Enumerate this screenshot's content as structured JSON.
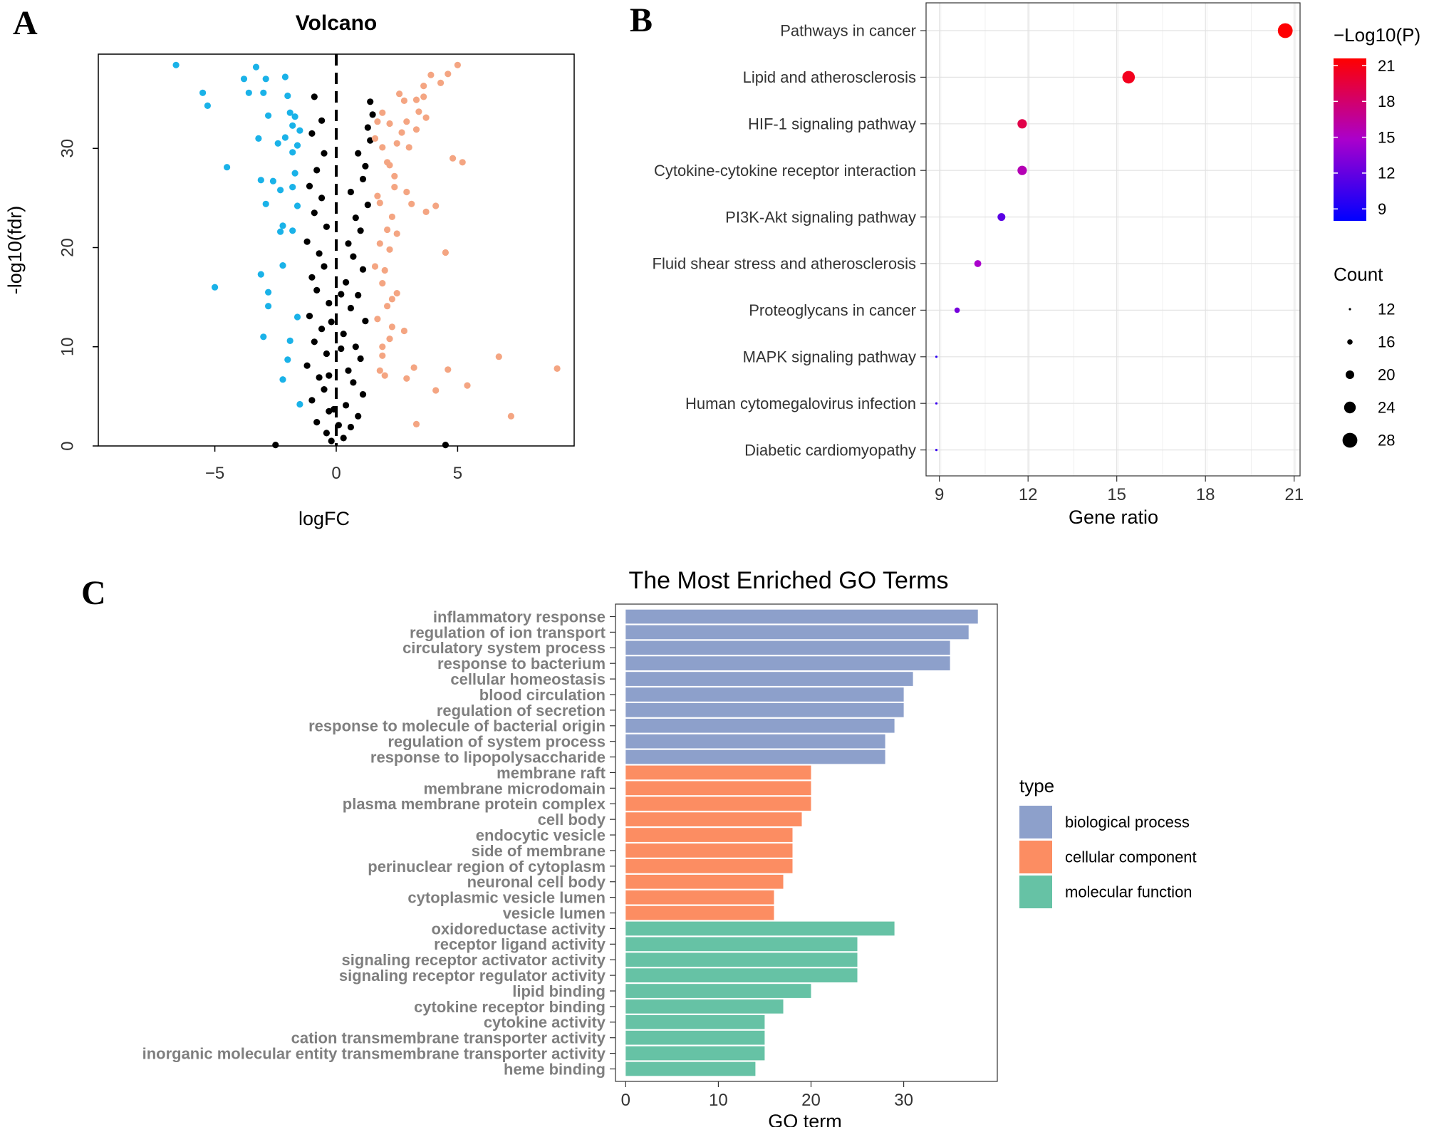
{
  "panel_labels": {
    "a": "A",
    "b": "B",
    "c": "C"
  },
  "chart_data": [
    {
      "type": "scatter",
      "panel": "A",
      "title": "Volcano",
      "xlabel": "logFC",
      "ylabel": "-log10(fdr)",
      "xlim": [
        -9.8,
        9.8
      ],
      "ylim": [
        0,
        39.5
      ],
      "xticks": [
        -5,
        0,
        5
      ],
      "yticks": [
        0,
        10,
        20,
        30
      ],
      "xtick_labels": [
        "−5",
        "0",
        "5"
      ],
      "ytick_labels": [
        "0",
        "10",
        "20",
        "30"
      ],
      "colors": {
        "down": "#1ab2e8",
        "ns": "#000000",
        "up": "#f4a582"
      },
      "series": [
        {
          "name": "down",
          "points": [
            [
              -6.6,
              38.4
            ],
            [
              -5.5,
              35.6
            ],
            [
              -5.3,
              34.3
            ],
            [
              -4.5,
              28.1
            ],
            [
              -5,
              16
            ],
            [
              -3.8,
              37
            ],
            [
              -3.6,
              35.6
            ],
            [
              -3.3,
              38.2
            ],
            [
              -3.2,
              31
            ],
            [
              -3.1,
              26.8
            ],
            [
              -3,
              35.6
            ],
            [
              -2.9,
              37
            ],
            [
              -2.8,
              33.3
            ],
            [
              -2.9,
              24.4
            ],
            [
              -2.8,
              15.5
            ],
            [
              -2.8,
              14.1
            ],
            [
              -3,
              11
            ],
            [
              -3.1,
              17.3
            ],
            [
              -2.6,
              26.7
            ],
            [
              -2.4,
              30.5
            ],
            [
              -2.1,
              37.2
            ],
            [
              -2.2,
              22.2
            ],
            [
              -2.3,
              21.6
            ],
            [
              -2.2,
              18.2
            ],
            [
              -2,
              35.3
            ],
            [
              -1.9,
              33.6
            ],
            [
              -1.8,
              29.6
            ],
            [
              -1.8,
              26.1
            ],
            [
              -1.8,
              32.3
            ],
            [
              -2.1,
              31.1
            ],
            [
              -1.5,
              31.8
            ],
            [
              -1.9,
              10.6
            ],
            [
              -2,
              8.7
            ],
            [
              -2.2,
              6.7
            ],
            [
              -1.5,
              4.2
            ],
            [
              -1.7,
              27.5
            ],
            [
              -1.8,
              21.7
            ],
            [
              -2.3,
              25.8
            ],
            [
              -1.6,
              30.3
            ],
            [
              -1.7,
              33.2
            ],
            [
              -1.6,
              13
            ],
            [
              -1.6,
              24.2
            ]
          ]
        },
        {
          "name": "ns",
          "points": [
            [
              -0.9,
              35.2
            ],
            [
              -0.6,
              32.8
            ],
            [
              -1,
              31.5
            ],
            [
              -0.5,
              29.5
            ],
            [
              -0.8,
              27.8
            ],
            [
              -1.1,
              26.2
            ],
            [
              -0.6,
              25
            ],
            [
              -0.9,
              23.5
            ],
            [
              -0.4,
              22.1
            ],
            [
              -1.2,
              20.6
            ],
            [
              -0.7,
              19.4
            ],
            [
              -0.5,
              18.1
            ],
            [
              -1,
              17
            ],
            [
              -0.8,
              15.7
            ],
            [
              -0.3,
              14.4
            ],
            [
              -1.1,
              13.1
            ],
            [
              -0.6,
              11.8
            ],
            [
              -0.9,
              10.5
            ],
            [
              -0.4,
              9.3
            ],
            [
              -1.2,
              8.1
            ],
            [
              -0.7,
              6.9
            ],
            [
              -0.5,
              5.7
            ],
            [
              -1,
              4.6
            ],
            [
              -0.3,
              3.5
            ],
            [
              -0.8,
              2.4
            ],
            [
              -0.4,
              1.3
            ],
            [
              -0.2,
              0.5
            ],
            [
              0.3,
              0.8
            ],
            [
              0.6,
              1.9
            ],
            [
              0.9,
              3
            ],
            [
              0.4,
              4.1
            ],
            [
              1.1,
              5.2
            ],
            [
              0.7,
              6.4
            ],
            [
              0.5,
              7.6
            ],
            [
              1,
              8.8
            ],
            [
              0.8,
              10
            ],
            [
              0.3,
              11.3
            ],
            [
              1.2,
              12.6
            ],
            [
              0.6,
              13.9
            ],
            [
              0.9,
              15.2
            ],
            [
              0.4,
              16.5
            ],
            [
              1.1,
              17.8
            ],
            [
              0.7,
              19.1
            ],
            [
              0.5,
              20.4
            ],
            [
              1,
              21.7
            ],
            [
              0.8,
              23
            ],
            [
              1.3,
              24.3
            ],
            [
              0.6,
              25.6
            ],
            [
              1.1,
              26.9
            ],
            [
              1.2,
              28.2
            ],
            [
              0.9,
              29.5
            ],
            [
              1.4,
              30.8
            ],
            [
              1.3,
              32.1
            ],
            [
              1.5,
              33.4
            ],
            [
              1.4,
              34.7
            ],
            [
              -0.2,
              12.5
            ],
            [
              0.2,
              15.3
            ],
            [
              -0.3,
              7.1
            ],
            [
              0.2,
              9.8
            ],
            [
              -0.1,
              3.7
            ],
            [
              0.1,
              2.1
            ],
            [
              -2.5,
              0.1
            ],
            [
              4.5,
              0.1
            ]
          ]
        },
        {
          "name": "up",
          "points": [
            [
              5,
              38.4
            ],
            [
              4.6,
              37.5
            ],
            [
              4.3,
              36.6
            ],
            [
              3.9,
              37.4
            ],
            [
              3.6,
              36.3
            ],
            [
              3.3,
              34.9
            ],
            [
              3.6,
              35.2
            ],
            [
              3.4,
              33.7
            ],
            [
              2.8,
              34.8
            ],
            [
              2.9,
              32.7
            ],
            [
              2.6,
              35.5
            ],
            [
              3.7,
              33.1
            ],
            [
              2.7,
              31.6
            ],
            [
              3.3,
              31.9
            ],
            [
              3,
              30.1
            ],
            [
              2.5,
              30.5
            ],
            [
              2.2,
              32.5
            ],
            [
              1.9,
              33.6
            ],
            [
              1.7,
              32.7
            ],
            [
              1.6,
              31
            ],
            [
              1.9,
              30.1
            ],
            [
              2.1,
              28.6
            ],
            [
              2.4,
              27.2
            ],
            [
              2.9,
              25.6
            ],
            [
              3.1,
              24.4
            ],
            [
              3.7,
              23.6
            ],
            [
              4.1,
              24.2
            ],
            [
              2.3,
              23.1
            ],
            [
              2.1,
              21.8
            ],
            [
              1.8,
              20.4
            ],
            [
              2.2,
              19.8
            ],
            [
              2,
              17.7
            ],
            [
              1.9,
              16.4
            ],
            [
              2.5,
              15.4
            ],
            [
              2.1,
              14.1
            ],
            [
              1.7,
              12.8
            ],
            [
              2.3,
              12
            ],
            [
              2.2,
              10.8
            ],
            [
              1.9,
              9.1
            ],
            [
              1.8,
              7.6
            ],
            [
              2,
              7.1
            ],
            [
              3.2,
              7.9
            ],
            [
              2.9,
              6.8
            ],
            [
              4.1,
              5.6
            ],
            [
              4.6,
              7.7
            ],
            [
              4.8,
              29
            ],
            [
              4.5,
              19.5
            ],
            [
              5.2,
              28.6
            ],
            [
              5.4,
              6.1
            ],
            [
              6.7,
              9
            ],
            [
              7.2,
              3
            ],
            [
              9.1,
              7.8
            ],
            [
              3.3,
              2.2
            ],
            [
              2.3,
              14.8
            ],
            [
              1.9,
              10
            ],
            [
              1.7,
              25.2
            ],
            [
              1.8,
              24.5
            ],
            [
              2.4,
              26.1
            ],
            [
              2.5,
              21.4
            ],
            [
              2.8,
              11.6
            ],
            [
              1.6,
              18.1
            ],
            [
              2.2,
              28.3
            ]
          ]
        }
      ]
    },
    {
      "type": "scatter",
      "panel": "B",
      "xlabel": "Gene ratio",
      "xlim": [
        8.55,
        21.2
      ],
      "xticks": [
        9,
        12,
        15,
        18,
        21
      ],
      "xtick_labels": [
        "9",
        "12",
        "15",
        "18",
        "21"
      ],
      "categories": [
        "Pathways in cancer",
        "Lipid and atherosclerosis",
        "HIF-1 signaling pathway",
        "Cytokine-cytokine receptor interaction",
        "PI3K-Akt signaling pathway",
        "Fluid shear stress and atherosclerosis",
        "Proteoglycans in cancer",
        "MAPK signaling pathway",
        "Human cytomegalovirus infection",
        "Diabetic cardiomyopathy"
      ],
      "x": [
        20.7,
        15.4,
        11.8,
        11.8,
        11.1,
        10.3,
        9.6,
        8.9,
        8.9,
        8.9
      ],
      "size": [
        28,
        25,
        21,
        21,
        19,
        18,
        16,
        12,
        12,
        12
      ],
      "color": [
        21.5,
        20.6,
        19.2,
        15.6,
        11.6,
        14.8,
        12.7,
        9.8,
        10.3,
        10.2
      ],
      "color_legend": {
        "title": "−Log10(P)",
        "min": 8,
        "max": 21.6,
        "ticks": [
          21,
          18,
          15,
          12,
          9
        ],
        "low_color": "#0000ff",
        "high_color": "#ff0000"
      },
      "size_legend": {
        "title": "Count",
        "values": [
          12,
          16,
          20,
          24,
          28
        ],
        "labels": [
          "12",
          "16",
          "20",
          "24",
          "28"
        ]
      }
    },
    {
      "type": "bar",
      "panel": "C",
      "orientation": "horizontal",
      "title": "The Most Enriched GO Terms",
      "xlabel": "GO term",
      "xlim": [
        -1.1,
        40.1
      ],
      "xticks": [
        0,
        10,
        20,
        30
      ],
      "xtick_labels": [
        "0",
        "10",
        "20",
        "30"
      ],
      "legend": {
        "title": "type",
        "items": [
          {
            "label": "biological process",
            "color": "#8da0cb"
          },
          {
            "label": "cellular component",
            "color": "#fc8d62"
          },
          {
            "label": "molecular function",
            "color": "#66c2a5"
          }
        ]
      },
      "categories": [
        "inflammatory response",
        "regulation of ion transport",
        "circulatory system process",
        "response to bacterium",
        "cellular homeostasis",
        "blood circulation",
        "regulation of secretion",
        "response to molecule of bacterial origin",
        "regulation of system process",
        "response to lipopolysaccharide",
        "membrane raft",
        "membrane microdomain",
        "plasma membrane protein complex",
        "cell body",
        "endocytic vesicle",
        "side of membrane",
        "perinuclear region of cytoplasm",
        "neuronal cell body",
        "cytoplasmic vesicle lumen",
        "vesicle lumen",
        "oxidoreductase activity",
        "receptor ligand activity",
        "signaling receptor activator activity",
        "signaling receptor regulator activity",
        "lipid binding",
        "cytokine receptor binding",
        "cytokine activity",
        "cation transmembrane transporter activity",
        "inorganic molecular entity transmembrane transporter activity",
        "heme binding"
      ],
      "values": [
        38,
        37,
        35,
        35,
        31,
        30,
        30,
        29,
        28,
        28,
        20,
        20,
        20,
        19,
        18,
        18,
        18,
        17,
        16,
        16,
        29,
        25,
        25,
        25,
        20,
        17,
        15,
        15,
        15,
        14
      ],
      "types": [
        0,
        0,
        0,
        0,
        0,
        0,
        0,
        0,
        0,
        0,
        1,
        1,
        1,
        1,
        1,
        1,
        1,
        1,
        1,
        1,
        2,
        2,
        2,
        2,
        2,
        2,
        2,
        2,
        2,
        2
      ]
    }
  ]
}
